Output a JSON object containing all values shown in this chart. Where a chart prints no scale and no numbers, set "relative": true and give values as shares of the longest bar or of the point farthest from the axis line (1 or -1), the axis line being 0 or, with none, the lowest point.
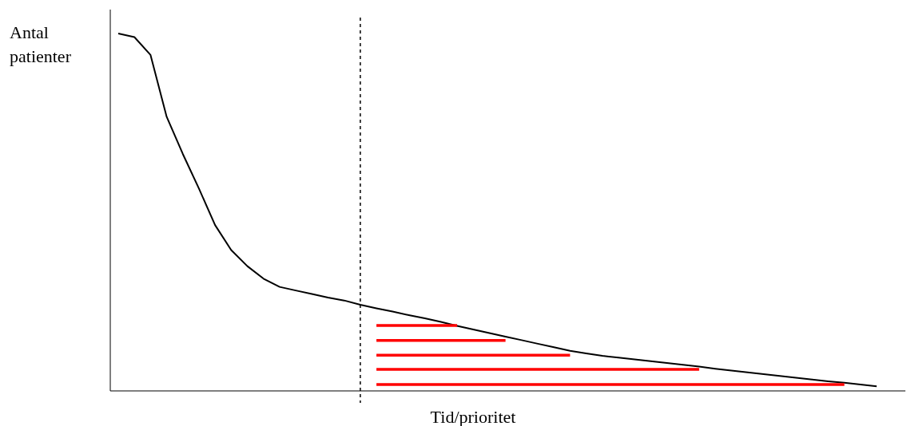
{
  "chart_data": {
    "type": "line",
    "relative": true,
    "ylabel": "Antal patienter",
    "xlabel": "Tid/prioritet",
    "line_style": "solid",
    "categories": [
      null,
      null,
      null,
      null,
      null,
      null,
      null,
      null,
      null,
      null,
      null,
      null,
      null,
      null,
      null,
      null,
      null,
      null,
      null,
      null,
      null,
      null,
      null,
      null,
      null,
      null,
      null,
      null,
      null,
      null,
      null,
      null,
      null,
      null,
      null,
      null,
      null,
      null,
      null,
      null,
      null,
      null,
      null,
      null,
      null,
      null,
      null,
      null
    ],
    "series": [
      {
        "color": "#000000",
        "values": [
          1.0,
          0.99,
          0.94,
          0.767,
          0.663,
          0.566,
          0.464,
          0.394,
          0.349,
          0.314,
          0.291,
          0.281,
          0.271,
          0.261,
          0.253,
          0.241,
          0.231,
          0.222,
          0.212,
          0.203,
          0.193,
          0.182,
          0.172,
          0.162,
          0.152,
          0.142,
          0.132,
          0.122,
          0.112,
          0.105,
          0.098,
          0.093,
          0.088,
          0.083,
          0.078,
          0.073,
          0.068,
          0.062,
          0.057,
          0.052,
          0.047,
          0.042,
          0.037,
          0.032,
          0.027,
          0.023,
          0.018,
          0.013
        ]
      },
      {
        "color": "#ff0000",
        "values": [
          null,
          null,
          null,
          null,
          null,
          null,
          null,
          null,
          null,
          null,
          null,
          null,
          null,
          null,
          null,
          null,
          0.183,
          0.183,
          0.183,
          0.183,
          0.183,
          0.183,
          null,
          null,
          null,
          null,
          null,
          null,
          null,
          null,
          null,
          null,
          null,
          null,
          null,
          null,
          null,
          null,
          null,
          null,
          null,
          null,
          null,
          null,
          null,
          null,
          null,
          null
        ]
      },
      {
        "color": "#ff0000",
        "values": [
          null,
          null,
          null,
          null,
          null,
          null,
          null,
          null,
          null,
          null,
          null,
          null,
          null,
          null,
          null,
          null,
          0.141,
          0.141,
          0.141,
          0.141,
          0.141,
          0.141,
          0.141,
          0.141,
          0.141,
          null,
          null,
          null,
          null,
          null,
          null,
          null,
          null,
          null,
          null,
          null,
          null,
          null,
          null,
          null,
          null,
          null,
          null,
          null,
          null,
          null,
          null,
          null
        ]
      },
      {
        "color": "#ff0000",
        "values": [
          null,
          null,
          null,
          null,
          null,
          null,
          null,
          null,
          null,
          null,
          null,
          null,
          null,
          null,
          null,
          null,
          0.1,
          0.1,
          0.1,
          0.1,
          0.1,
          0.1,
          0.1,
          0.1,
          0.1,
          0.1,
          0.1,
          0.1,
          0.1,
          null,
          null,
          null,
          null,
          null,
          null,
          null,
          null,
          null,
          null,
          null,
          null,
          null,
          null,
          null,
          null,
          null,
          null,
          null
        ]
      },
      {
        "color": "#ff0000",
        "values": [
          null,
          null,
          null,
          null,
          null,
          null,
          null,
          null,
          null,
          null,
          null,
          null,
          null,
          null,
          null,
          null,
          0.06,
          0.06,
          0.06,
          0.06,
          0.06,
          0.06,
          0.06,
          0.06,
          0.06,
          0.06,
          0.06,
          0.06,
          0.06,
          0.06,
          0.06,
          0.06,
          0.06,
          0.06,
          0.06,
          0.06,
          0.06,
          null,
          null,
          null,
          null,
          null,
          null,
          null,
          null,
          null,
          null,
          null
        ]
      },
      {
        "color": "#ff0000",
        "values": [
          null,
          null,
          null,
          null,
          null,
          null,
          null,
          null,
          null,
          null,
          null,
          null,
          null,
          null,
          null,
          null,
          0.018,
          0.018,
          0.018,
          0.018,
          0.018,
          0.018,
          0.018,
          0.018,
          0.018,
          0.018,
          0.018,
          0.018,
          0.018,
          0.018,
          0.018,
          0.018,
          0.018,
          0.018,
          0.018,
          0.018,
          0.018,
          0.018,
          0.018,
          0.018,
          0.018,
          0.018,
          0.018,
          0.018,
          0.018,
          0.018,
          null,
          null
        ]
      }
    ],
    "ref_lines": [
      {
        "axis": "x",
        "color": "#000000",
        "line_style": "dashed"
      }
    ]
  }
}
